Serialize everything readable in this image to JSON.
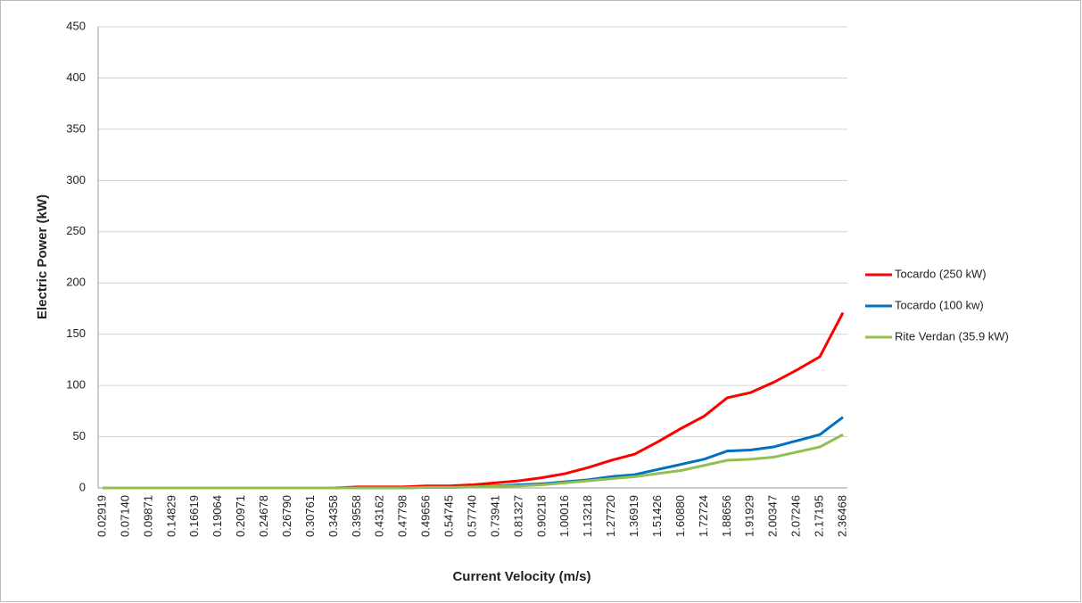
{
  "chart_data": {
    "type": "line",
    "x_label": "Current Velocity (m/s)",
    "y_label": "Electric Power (kW)",
    "categories": [
      "0.02919",
      "0.07140",
      "0.09871",
      "0.14829",
      "0.16619",
      "0.19064",
      "0.20971",
      "0.24678",
      "0.26790",
      "0.30761",
      "0.34358",
      "0.39558",
      "0.43162",
      "0.47798",
      "0.49656",
      "0.54745",
      "0.57740",
      "0.73941",
      "0.81327",
      "0.90218",
      "1.00016",
      "1.13218",
      "1.27720",
      "1.36919",
      "1.51426",
      "1.60880",
      "1.72724",
      "1.88656",
      "1.91929",
      "2.00347",
      "2.07246",
      "2.17195",
      "2.36468"
    ],
    "series": [
      {
        "name": "Tocardo (250 kW)",
        "color": "#ff0000",
        "values": [
          0,
          0,
          0,
          0,
          0,
          0,
          0,
          0,
          0,
          0,
          0,
          1,
          1,
          1,
          2,
          2,
          3,
          5,
          7,
          10,
          14,
          20,
          27,
          33,
          45,
          58,
          70,
          88,
          93,
          103,
          115,
          128,
          171
        ]
      },
      {
        "name": "Tocardo (100 kw)",
        "color": "#0070c0",
        "values": [
          0,
          0,
          0,
          0,
          0,
          0,
          0,
          0,
          0,
          0,
          0,
          0,
          0,
          0,
          0.5,
          0.5,
          1,
          2,
          3,
          4,
          6,
          8,
          11,
          13,
          18,
          23,
          28,
          36,
          37,
          40,
          46,
          52,
          69
        ]
      },
      {
        "name": "Rite Verdan (35.9 kW)",
        "color": "#92c050",
        "values": [
          0,
          0,
          0,
          0,
          0,
          0,
          0,
          0,
          0,
          0,
          0,
          0,
          0,
          0,
          0.5,
          0.5,
          1,
          1.5,
          2,
          3,
          5,
          7,
          9,
          11,
          14,
          17,
          22,
          27,
          28,
          30,
          35,
          40,
          52
        ]
      }
    ],
    "ylim": [
      0,
      450
    ],
    "yticks": [
      0,
      50,
      100,
      150,
      200,
      250,
      300,
      350,
      400,
      450
    ],
    "grid": true,
    "legend": "right"
  }
}
